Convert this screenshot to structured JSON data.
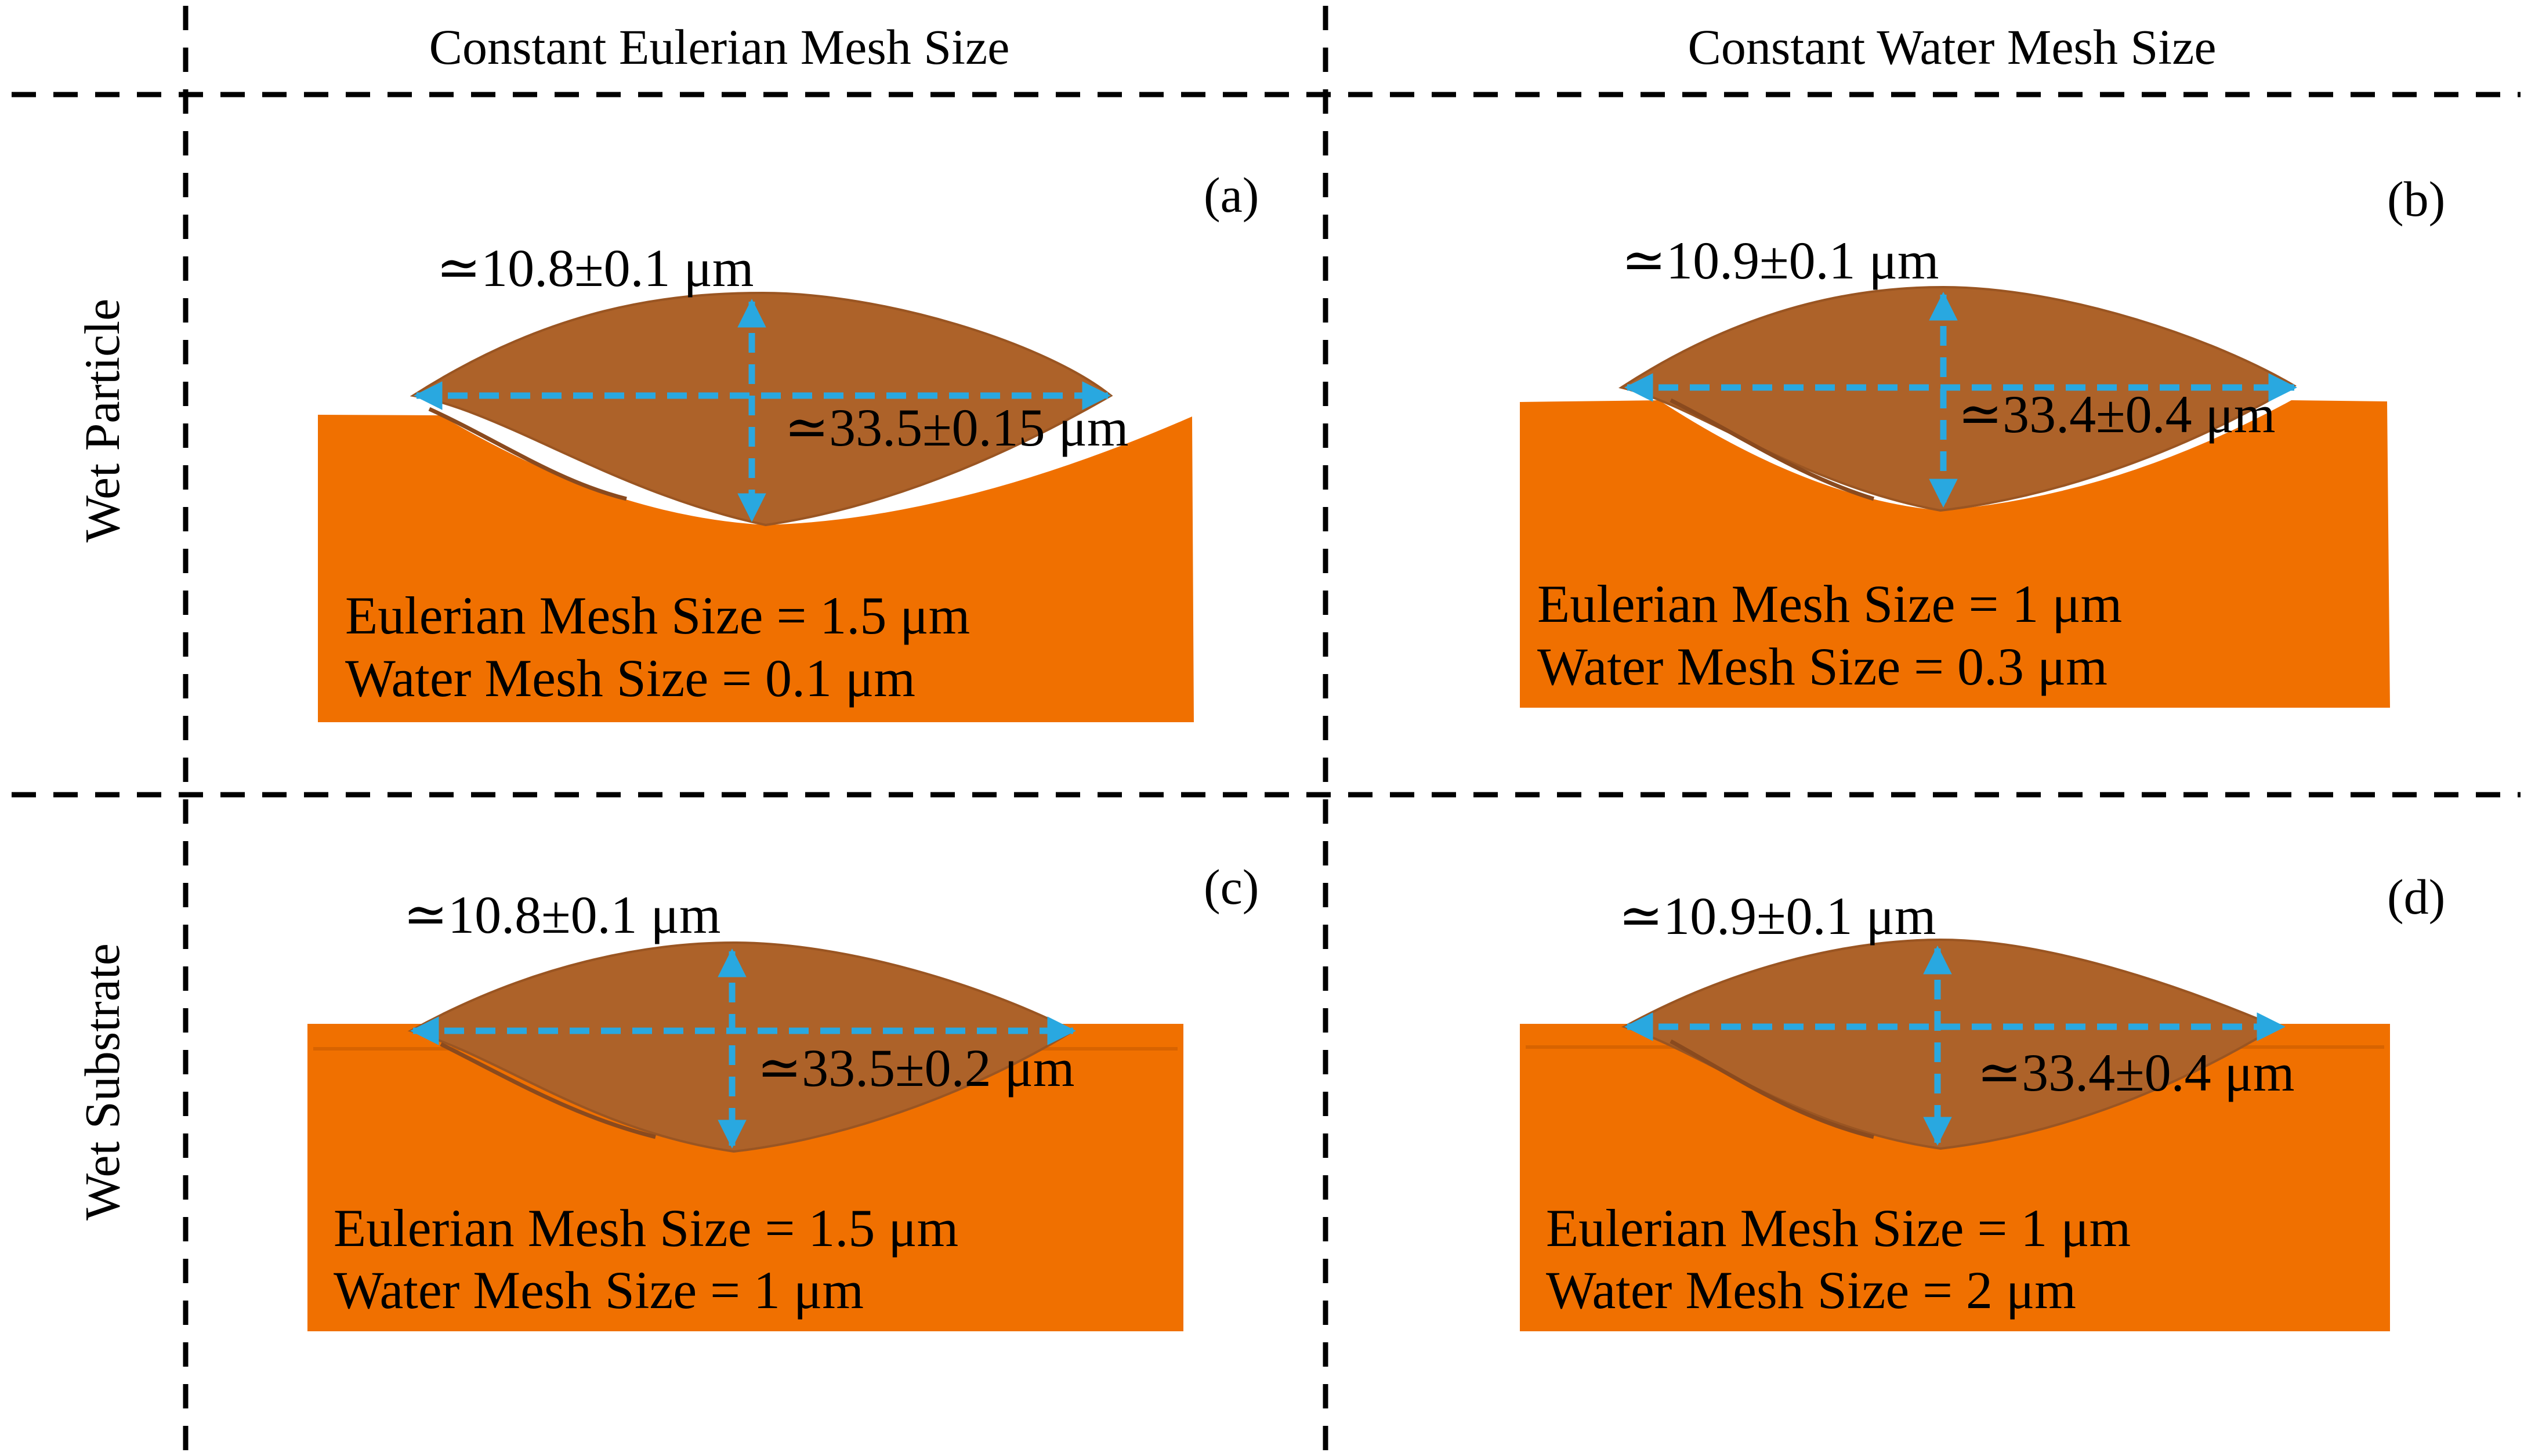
{
  "columns": [
    "Constant Eulerian Mesh Size",
    "Constant Water Mesh Size"
  ],
  "rows": [
    "Wet Particle",
    "Wet Substrate"
  ],
  "colors": {
    "substrate": "#F07000",
    "particle": "#AD6229",
    "particle_edge": "#9A5522",
    "arrow": "#29A8E0",
    "grid": "#000000"
  },
  "panels": [
    {
      "label": "(a)",
      "height": "≃10.8±0.1 μm",
      "width": "≃33.5±0.15 μm",
      "eulerian": "Eulerian Mesh Size = 1.5 μm",
      "water": "Water Mesh Size = 0.1 μm"
    },
    {
      "label": "(b)",
      "height": "≃10.9±0.1 μm",
      "width": "≃33.4±0.4 μm",
      "eulerian": "Eulerian Mesh Size = 1 μm",
      "water": "Water Mesh Size = 0.3 μm"
    },
    {
      "label": "(c)",
      "height": "≃10.8±0.1 μm",
      "width": "≃33.5±0.2 μm",
      "eulerian": "Eulerian Mesh Size = 1.5 μm",
      "water": "Water Mesh Size = 1 μm"
    },
    {
      "label": "(d)",
      "height": "≃10.9±0.1 μm",
      "width": "≃33.4±0.4 μm",
      "eulerian": "Eulerian Mesh Size = 1 μm",
      "water": "Water Mesh Size = 2 μm"
    }
  ]
}
